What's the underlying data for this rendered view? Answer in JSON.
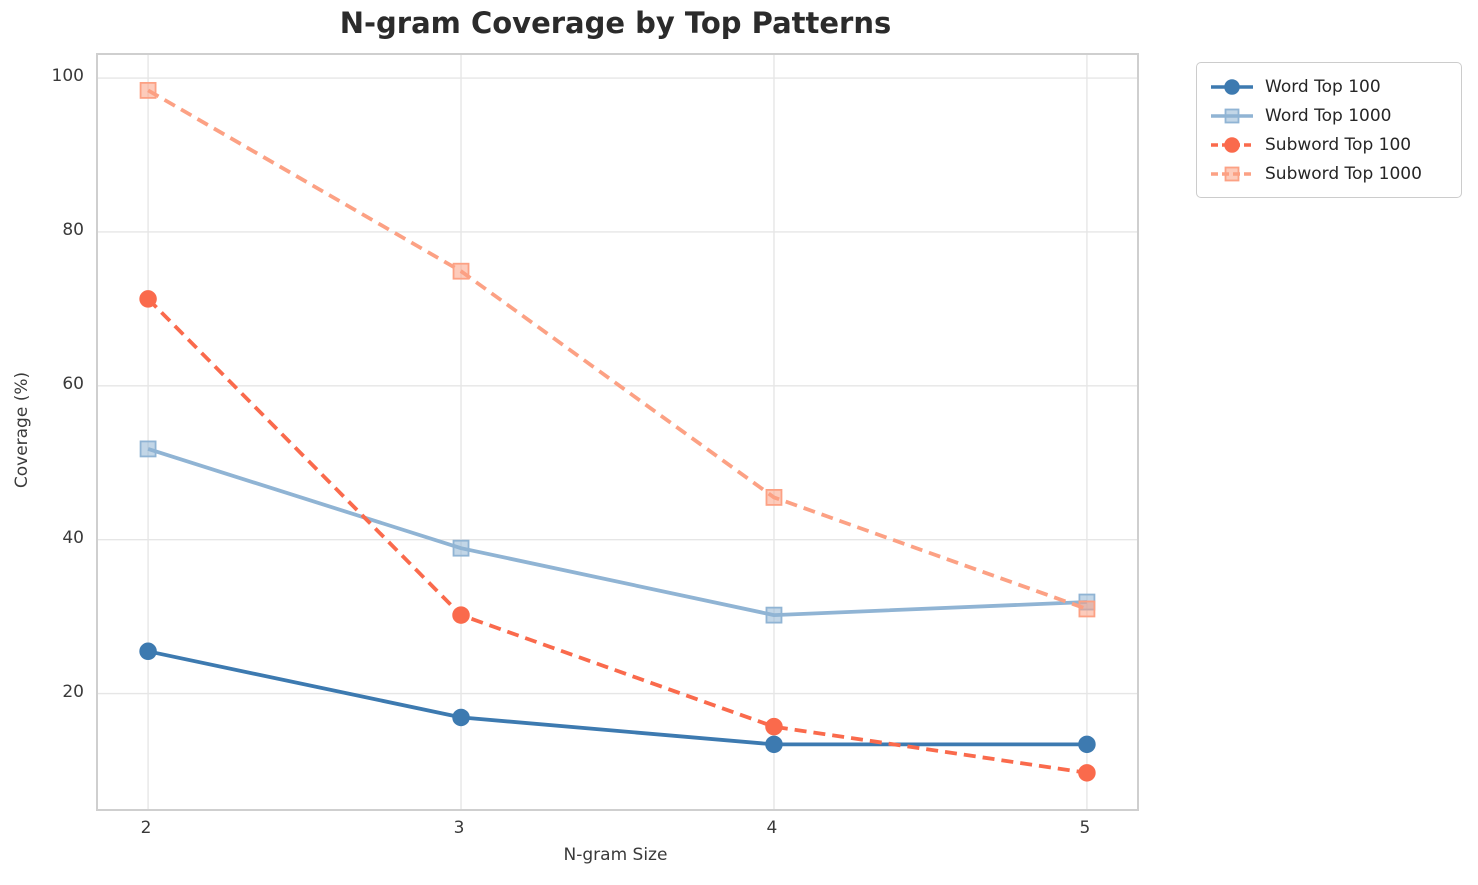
{
  "title": "N-gram Coverage by Top Patterns",
  "axes": {
    "xlabel": "N-gram Size",
    "ylabel": "Coverage (%)",
    "x_ticks": [
      2,
      3,
      4,
      5
    ],
    "y_ticks": [
      20,
      40,
      60,
      80,
      100
    ]
  },
  "colors": {
    "word_top_100": "#3d7ab0",
    "word_top_1000": "#90b4d4",
    "subword_top_100": "#fa6a4c",
    "subword_top_1000": "#fca184",
    "grid": "#e6e6e6",
    "spine": "#cfcfcf",
    "text": "#2b2b2b"
  },
  "chart_data": {
    "type": "line",
    "title": "N-gram Coverage by Top Patterns",
    "xlabel": "N-gram Size",
    "ylabel": "Coverage (%)",
    "x": [
      2,
      3,
      4,
      5
    ],
    "series": [
      {
        "name": "Word Top 100",
        "values": [
          25.5,
          16.9,
          13.4,
          13.4
        ],
        "color": "#3d7ab0",
        "linestyle": "solid",
        "marker": "circle"
      },
      {
        "name": "Word Top 1000",
        "values": [
          51.8,
          38.9,
          30.2,
          31.9
        ],
        "color": "#90b4d4",
        "linestyle": "solid",
        "marker": "square"
      },
      {
        "name": "Subword Top 100",
        "values": [
          71.3,
          30.2,
          15.7,
          9.7
        ],
        "color": "#fa6a4c",
        "linestyle": "dashed",
        "marker": "circle"
      },
      {
        "name": "Subword Top 1000",
        "values": [
          98.4,
          74.9,
          45.5,
          31.0
        ],
        "color": "#fca184",
        "linestyle": "dashed",
        "marker": "square"
      }
    ],
    "xlim": [
      1.84,
      5.16
    ],
    "ylim": [
      5,
      103
    ],
    "grid": true,
    "legend_position": "outside-top-right",
    "legend_labels": [
      "Word Top 100",
      "Word Top 1000",
      "Subword Top 100",
      "Subword Top 1000"
    ]
  }
}
